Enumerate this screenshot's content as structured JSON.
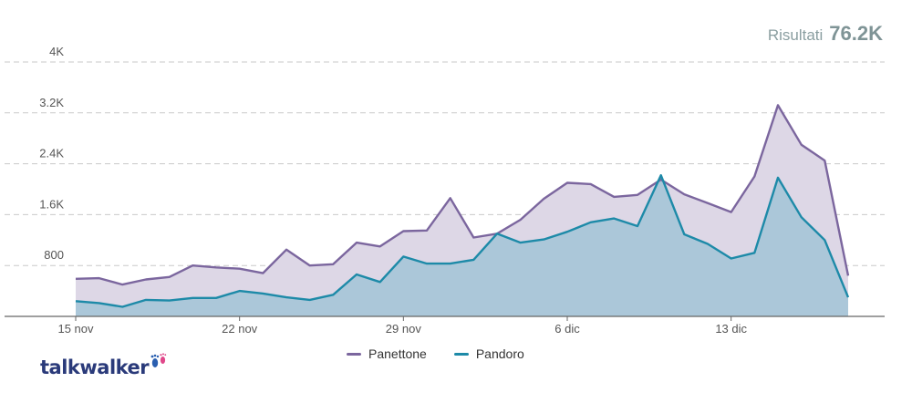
{
  "results": {
    "label": "Risultati",
    "value": "76.2K"
  },
  "brand": {
    "name": "talkwalker",
    "icon": "footprints-icon"
  },
  "chart_data": {
    "type": "area",
    "title": "",
    "xlabel": "",
    "ylabel": "",
    "ylim": [
      0,
      4000
    ],
    "yticks": [
      800,
      1600,
      2400,
      3200,
      4000
    ],
    "ytick_labels": [
      "800",
      "1.6K",
      "2.4K",
      "3.2K",
      "4K"
    ],
    "xticks": [
      {
        "label": "15 nov",
        "index": 0
      },
      {
        "label": "22 nov",
        "index": 7
      },
      {
        "label": "29 nov",
        "index": 14
      },
      {
        "label": "6 dic",
        "index": 21
      },
      {
        "label": "13 dic",
        "index": 28
      }
    ],
    "grid": true,
    "legend_position": "bottom-center",
    "series": [
      {
        "name": "Panettone",
        "color": "#7b669e",
        "fill": "#ddd7e6",
        "values": [
          590,
          600,
          500,
          580,
          620,
          800,
          770,
          750,
          680,
          1050,
          800,
          820,
          1160,
          1100,
          1340,
          1350,
          1860,
          1240,
          1300,
          1520,
          1850,
          2100,
          2080,
          1880,
          1910,
          2150,
          1920,
          1780,
          1640,
          2200,
          3320,
          2700,
          2450,
          640
        ]
      },
      {
        "name": "Pandoro",
        "color": "#1d8aa8",
        "fill": "#a8c6d8",
        "values": [
          240,
          210,
          150,
          260,
          250,
          290,
          290,
          400,
          360,
          300,
          260,
          340,
          660,
          540,
          940,
          830,
          830,
          890,
          1300,
          1160,
          1210,
          1330,
          1480,
          1540,
          1420,
          2220,
          1290,
          1140,
          910,
          1000,
          2180,
          1560,
          1200,
          300
        ]
      }
    ]
  }
}
